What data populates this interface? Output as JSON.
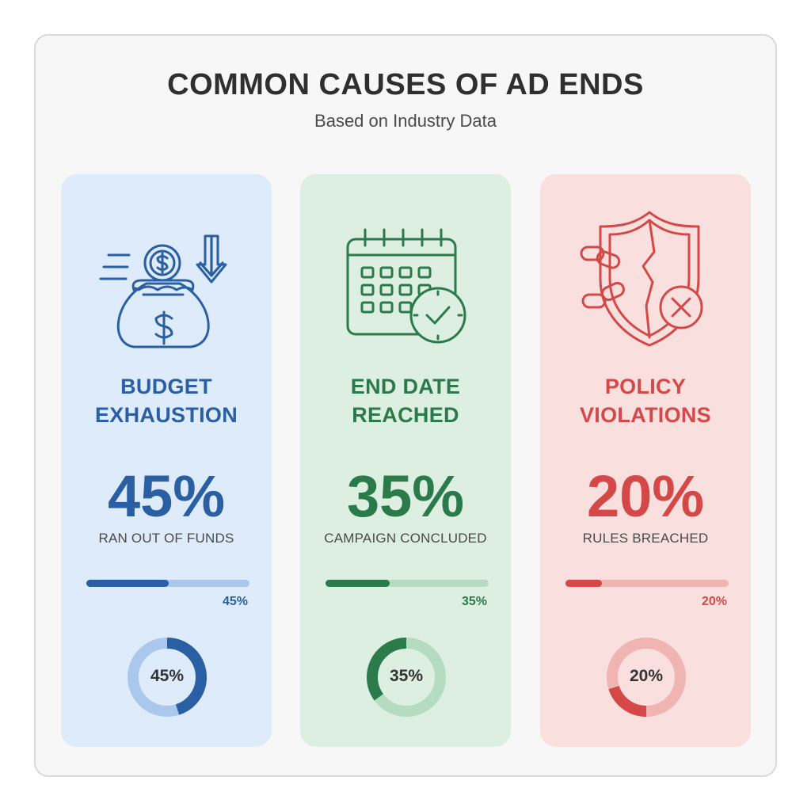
{
  "header": {
    "title": "COMMON CAUSES OF AD ENDS",
    "subtitle": "Based on Industry Data"
  },
  "colors": {
    "blue": "#2a5fa3",
    "blue_light": "#a9c8ec",
    "blue_bg": "#deebfb",
    "green": "#2b7a4b",
    "green_light": "#b5dcc1",
    "green_bg": "#dcefe0",
    "red": "#d44848",
    "red_light": "#f0b4b2",
    "red_bg": "#f9e0df"
  },
  "cards": [
    {
      "icon": "money-bag-icon",
      "label_line1": "BUDGET",
      "label_line2": "EXHAUSTION",
      "value_text": "45%",
      "caption": "RAN OUT OF FUNDS",
      "bar_label": "45%",
      "donut_label": "45%",
      "value": 45
    },
    {
      "icon": "calendar-check-icon",
      "label_line1": "END DATE",
      "label_line2": "REACHED",
      "value_text": "35%",
      "caption": "CAMPAIGN CONCLUDED",
      "bar_label": "35%",
      "donut_label": "35%",
      "value": 35
    },
    {
      "icon": "broken-shield-icon",
      "label_line1": "POLICY",
      "label_line2": "VIOLATIONS",
      "value_text": "20%",
      "caption": "RULES BREACHED",
      "bar_label": "20%",
      "donut_label": "20%",
      "value": 20
    }
  ],
  "chart_data": {
    "type": "bar",
    "title": "COMMON CAUSES OF AD ENDS",
    "subtitle": "Based on Industry Data",
    "categories": [
      "BUDGET EXHAUSTION",
      "END DATE REACHED",
      "POLICY VIOLATIONS"
    ],
    "values": [
      45,
      35,
      20
    ],
    "unit": "%",
    "ylim": [
      0,
      100
    ]
  }
}
